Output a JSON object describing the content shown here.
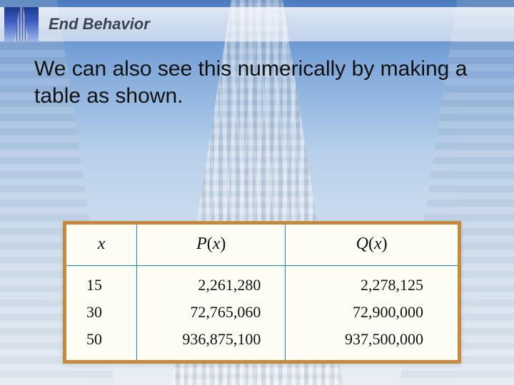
{
  "slide": {
    "title": "End Behavior",
    "title_fontsize": 22,
    "title_color": "#3b4450",
    "body": "We can also see this numerically by making a table as shown.",
    "body_fontsize": 30,
    "body_color": "#111111"
  },
  "table": {
    "type": "table",
    "border_color": "#c68a3e",
    "rule_color": "#1d8fa3",
    "background_color": "#fdfcf5",
    "header_fontsize": 24,
    "cell_fontsize": 22,
    "columns": [
      {
        "key": "x",
        "label_html": "x",
        "width_pct": 18,
        "align": "left"
      },
      {
        "key": "P",
        "label_html": "P(x)",
        "width_pct": 38,
        "align": "right"
      },
      {
        "key": "Q",
        "label_html": "Q(x)",
        "width_pct": 44,
        "align": "right"
      }
    ],
    "headers": {
      "x": "x",
      "P": "P",
      "Q": "Q",
      "arg": "x"
    },
    "rows": [
      {
        "x": "15",
        "P": "2,261,280",
        "Q": "2,278,125"
      },
      {
        "x": "30",
        "P": "72,765,060",
        "Q": "72,900,000"
      },
      {
        "x": "50",
        "P": "936,875,100",
        "Q": "937,500,000"
      }
    ]
  },
  "colors": {
    "sky_top": "#4a7bbf",
    "sky_bottom": "#e8eef4"
  }
}
